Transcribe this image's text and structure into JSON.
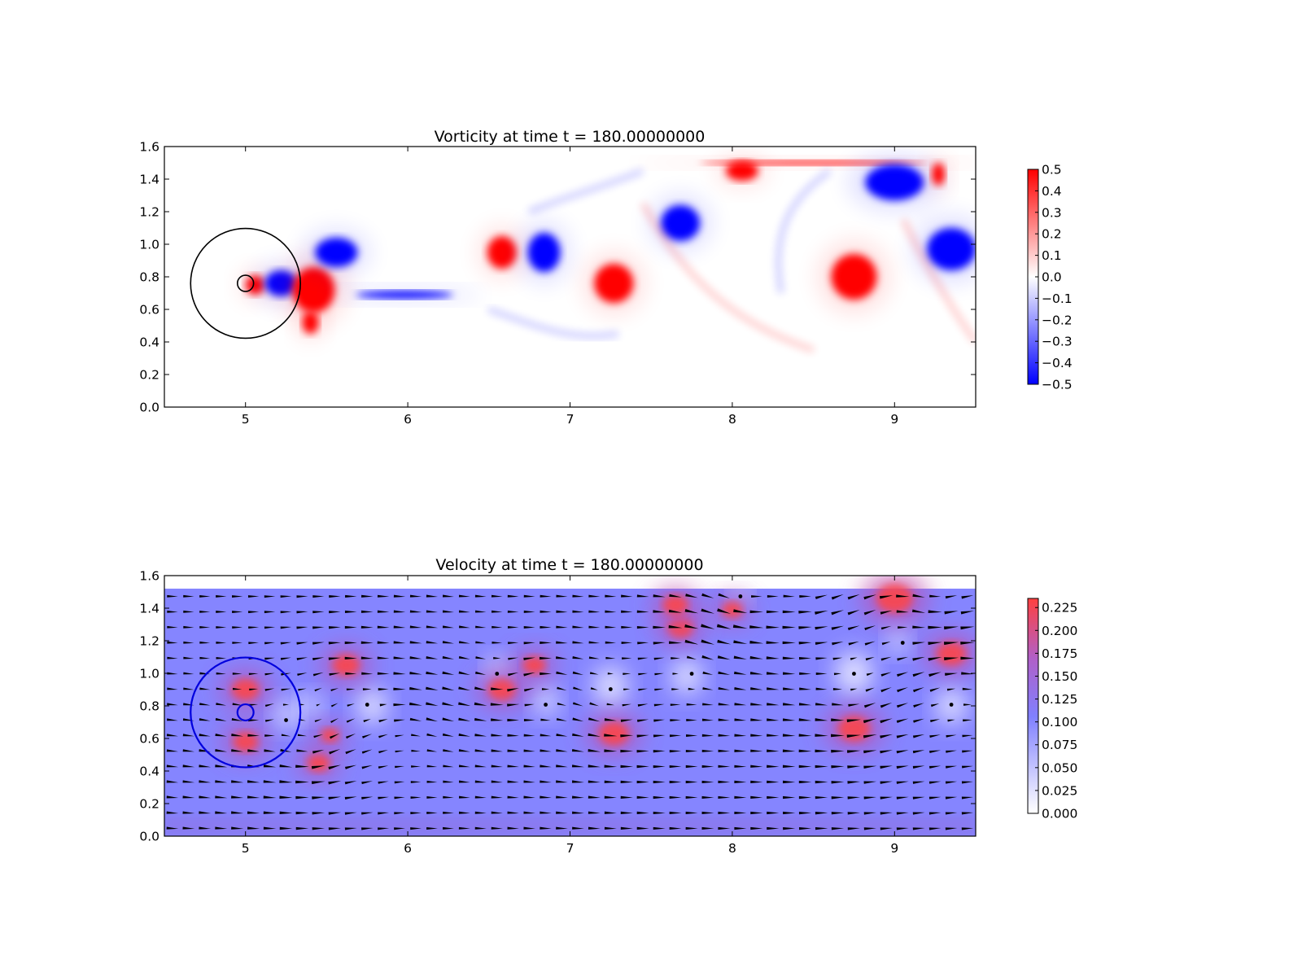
{
  "chart_data": [
    {
      "type": "heatmap",
      "title": "Vorticity at time t =   180.00000000",
      "xlim": [
        4.5,
        9.5
      ],
      "ylim": [
        0.0,
        1.6
      ],
      "xticks": [
        "5",
        "6",
        "7",
        "8",
        "9"
      ],
      "yticks": [
        "0.0",
        "0.2",
        "0.4",
        "0.6",
        "0.8",
        "1.0",
        "1.2",
        "1.4",
        "1.6"
      ],
      "grid": false,
      "colorbar": {
        "colormap": "bwr",
        "range": [
          -0.5,
          0.5
        ],
        "ticks": [
          "−0.5",
          "−0.4",
          "−0.3",
          "−0.2",
          "−0.1",
          "0.0",
          "0.1",
          "0.2",
          "0.3",
          "0.4",
          "0.5"
        ],
        "low_color": "#0000ff",
        "mid_color": "#ffffff",
        "high_color": "#ff0000"
      },
      "overlays": [
        {
          "shape": "circle",
          "center": [
            5.0,
            0.76
          ],
          "radius": 0.34,
          "color": "#000000"
        },
        {
          "shape": "circle",
          "center": [
            5.0,
            0.76
          ],
          "radius": 0.05,
          "color": "#000000"
        }
      ],
      "vortices": [
        {
          "x": 5.06,
          "y": 0.75,
          "rx": 0.06,
          "ry": 0.06,
          "sign": 1
        },
        {
          "x": 5.22,
          "y": 0.76,
          "rx": 0.1,
          "ry": 0.08,
          "sign": -1
        },
        {
          "x": 5.42,
          "y": 0.72,
          "rx": 0.13,
          "ry": 0.14,
          "sign": 1
        },
        {
          "x": 5.4,
          "y": 0.52,
          "rx": 0.05,
          "ry": 0.07,
          "sign": 1
        },
        {
          "x": 5.56,
          "y": 0.95,
          "rx": 0.13,
          "ry": 0.09,
          "sign": -1
        },
        {
          "x": 5.98,
          "y": 0.69,
          "rx": 0.3,
          "ry": 0.025,
          "sign": -1
        },
        {
          "x": 6.58,
          "y": 0.95,
          "rx": 0.09,
          "ry": 0.1,
          "sign": 1
        },
        {
          "x": 6.84,
          "y": 0.95,
          "rx": 0.1,
          "ry": 0.12,
          "sign": -1
        },
        {
          "x": 7.27,
          "y": 0.76,
          "rx": 0.12,
          "ry": 0.12,
          "sign": 1
        },
        {
          "x": 7.68,
          "y": 1.13,
          "rx": 0.12,
          "ry": 0.11,
          "sign": -1
        },
        {
          "x": 8.06,
          "y": 1.45,
          "rx": 0.1,
          "ry": 0.06,
          "sign": 1
        },
        {
          "x": 8.5,
          "y": 1.5,
          "rx": 0.7,
          "ry": 0.015,
          "sign": 1
        },
        {
          "x": 8.75,
          "y": 0.8,
          "rx": 0.14,
          "ry": 0.14,
          "sign": 1
        },
        {
          "x": 9.0,
          "y": 1.38,
          "rx": 0.18,
          "ry": 0.11,
          "sign": -1
        },
        {
          "x": 9.27,
          "y": 1.43,
          "rx": 0.04,
          "ry": 0.07,
          "sign": 1
        },
        {
          "x": 9.35,
          "y": 0.97,
          "rx": 0.15,
          "ry": 0.13,
          "sign": -1
        }
      ]
    },
    {
      "type": "heatmap",
      "title": "Velocity at time t =   180.00000000",
      "xlim": [
        4.5,
        9.5
      ],
      "ylim": [
        0.0,
        1.6
      ],
      "xticks": [
        "5",
        "6",
        "7",
        "8",
        "9"
      ],
      "yticks": [
        "0.0",
        "0.2",
        "0.4",
        "0.6",
        "0.8",
        "1.0",
        "1.2",
        "1.4",
        "1.6"
      ],
      "grid": false,
      "field_top": 1.52,
      "colorbar": {
        "range": [
          0.0,
          0.235
        ],
        "ticks": [
          "0.000",
          "0.025",
          "0.050",
          "0.075",
          "0.100",
          "0.125",
          "0.150",
          "0.175",
          "0.200",
          "0.225"
        ],
        "low_color": "#ffffff",
        "mid_color": "#8080ff",
        "high_color": "#ff4040"
      },
      "background_speed": 0.1,
      "overlays": [
        {
          "shape": "circle",
          "center": [
            5.0,
            0.76
          ],
          "radius": 0.34,
          "color": "#0000dd"
        },
        {
          "shape": "circle",
          "center": [
            5.0,
            0.76
          ],
          "radius": 0.05,
          "color": "#0000dd"
        }
      ],
      "quiver": {
        "color": "#000000",
        "nx": 50,
        "ny": 16
      },
      "speed_highs": [
        {
          "x": 5.0,
          "y": 0.9,
          "r": 0.12
        },
        {
          "x": 5.0,
          "y": 0.58,
          "r": 0.11
        },
        {
          "x": 5.62,
          "y": 1.05,
          "r": 0.12
        },
        {
          "x": 5.45,
          "y": 0.45,
          "r": 0.1
        },
        {
          "x": 5.52,
          "y": 0.62,
          "r": 0.08
        },
        {
          "x": 6.58,
          "y": 0.9,
          "r": 0.12
        },
        {
          "x": 6.78,
          "y": 1.05,
          "r": 0.1
        },
        {
          "x": 7.27,
          "y": 0.63,
          "r": 0.13
        },
        {
          "x": 7.68,
          "y": 1.28,
          "r": 0.11
        },
        {
          "x": 7.65,
          "y": 1.42,
          "r": 0.11
        },
        {
          "x": 8.0,
          "y": 1.39,
          "r": 0.09
        },
        {
          "x": 8.75,
          "y": 0.66,
          "r": 0.14
        },
        {
          "x": 9.0,
          "y": 1.46,
          "r": 0.16
        },
        {
          "x": 9.35,
          "y": 1.12,
          "r": 0.13
        }
      ],
      "speed_lows": [
        {
          "x": 5.25,
          "y": 0.75,
          "r": 0.07
        },
        {
          "x": 5.4,
          "y": 0.8,
          "r": 0.06
        },
        {
          "x": 5.78,
          "y": 0.8,
          "r": 0.09
        },
        {
          "x": 6.55,
          "y": 1.03,
          "r": 0.06
        },
        {
          "x": 6.85,
          "y": 0.83,
          "r": 0.07
        },
        {
          "x": 7.25,
          "y": 0.92,
          "r": 0.1
        },
        {
          "x": 7.72,
          "y": 0.98,
          "r": 0.09
        },
        {
          "x": 8.05,
          "y": 1.5,
          "r": 0.05
        },
        {
          "x": 8.75,
          "y": 1.0,
          "r": 0.11
        },
        {
          "x": 9.02,
          "y": 1.2,
          "r": 0.06
        },
        {
          "x": 9.35,
          "y": 0.8,
          "r": 0.09
        }
      ]
    }
  ]
}
